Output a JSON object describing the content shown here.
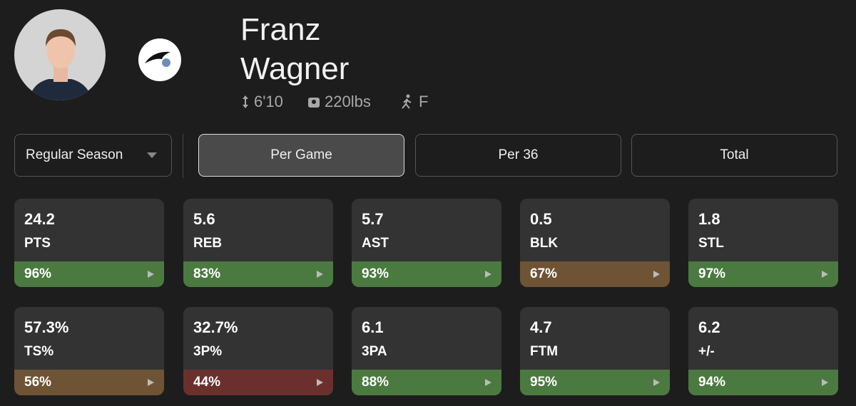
{
  "player": {
    "first_name": "Franz",
    "last_name": "Wagner",
    "height": "6'10",
    "weight": "220lbs",
    "position": "F"
  },
  "controls": {
    "season": "Regular Season",
    "tabs": [
      "Per Game",
      "Per 36",
      "Total"
    ],
    "selected_tab": 0
  },
  "stats": [
    {
      "value": "24.2",
      "label": "PTS",
      "percentile": "96%",
      "color": "#4a7a3f"
    },
    {
      "value": "5.6",
      "label": "REB",
      "percentile": "83%",
      "color": "#4a7a3f"
    },
    {
      "value": "5.7",
      "label": "AST",
      "percentile": "93%",
      "color": "#4a7a3f"
    },
    {
      "value": "0.5",
      "label": "BLK",
      "percentile": "67%",
      "color": "#6e5334"
    },
    {
      "value": "1.8",
      "label": "STL",
      "percentile": "97%",
      "color": "#4a7a3f"
    },
    {
      "value": "57.3%",
      "label": "TS%",
      "percentile": "56%",
      "color": "#6e5334"
    },
    {
      "value": "32.7%",
      "label": "3P%",
      "percentile": "44%",
      "color": "#6b302d"
    },
    {
      "value": "6.1",
      "label": "3PA",
      "percentile": "88%",
      "color": "#4a7a3f"
    },
    {
      "value": "4.7",
      "label": "FTM",
      "percentile": "95%",
      "color": "#4a7a3f"
    },
    {
      "value": "6.2",
      "label": "+/-",
      "percentile": "94%",
      "color": "#4a7a3f"
    }
  ]
}
